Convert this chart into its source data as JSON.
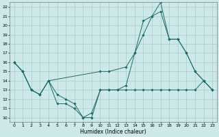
{
  "xlabel": "Humidex (Indice chaleur)",
  "xlim": [
    -0.5,
    23.5
  ],
  "ylim": [
    9.5,
    22.5
  ],
  "xticks": [
    0,
    1,
    2,
    3,
    4,
    5,
    6,
    7,
    8,
    9,
    10,
    11,
    12,
    13,
    14,
    15,
    16,
    17,
    18,
    19,
    20,
    21,
    22,
    23
  ],
  "yticks": [
    10,
    11,
    12,
    13,
    14,
    15,
    16,
    17,
    18,
    19,
    20,
    21,
    22
  ],
  "bg_color": "#cce8e8",
  "grid_color": "#aacccc",
  "line_color": "#1a6b6b",
  "line1_x": [
    0,
    1,
    2,
    3,
    4,
    5,
    6,
    7,
    8,
    9,
    10,
    11,
    12,
    13,
    14,
    15,
    16,
    17,
    18,
    19,
    20,
    21,
    22,
    23
  ],
  "line1_y": [
    16.0,
    15.0,
    13.0,
    12.5,
    14.0,
    11.5,
    11.5,
    11.0,
    10.0,
    10.0,
    13.0,
    13.0,
    13.0,
    13.0,
    13.0,
    13.0,
    13.0,
    13.0,
    13.0,
    13.0,
    13.0,
    13.0,
    14.0,
    13.0
  ],
  "line2_x": [
    0,
    1,
    2,
    3,
    4,
    5,
    6,
    7,
    8,
    9,
    10,
    11,
    12,
    13,
    14,
    15,
    16,
    17,
    18,
    19,
    20,
    21,
    22,
    23
  ],
  "line2_y": [
    16.0,
    15.0,
    13.0,
    12.5,
    14.0,
    12.5,
    12.0,
    11.5,
    10.0,
    10.5,
    13.0,
    13.0,
    13.0,
    13.5,
    17.0,
    20.5,
    21.0,
    22.5,
    18.5,
    18.5,
    17.0,
    15.0,
    14.0,
    13.0
  ],
  "line3_x": [
    0,
    1,
    2,
    3,
    4,
    10,
    11,
    13,
    14,
    15,
    16,
    17,
    18,
    19,
    20,
    21,
    22,
    23
  ],
  "line3_y": [
    16.0,
    15.0,
    13.0,
    12.5,
    14.0,
    15.0,
    15.0,
    15.5,
    17.0,
    19.0,
    21.0,
    21.5,
    18.5,
    18.5,
    17.0,
    15.0,
    14.0,
    13.0
  ]
}
